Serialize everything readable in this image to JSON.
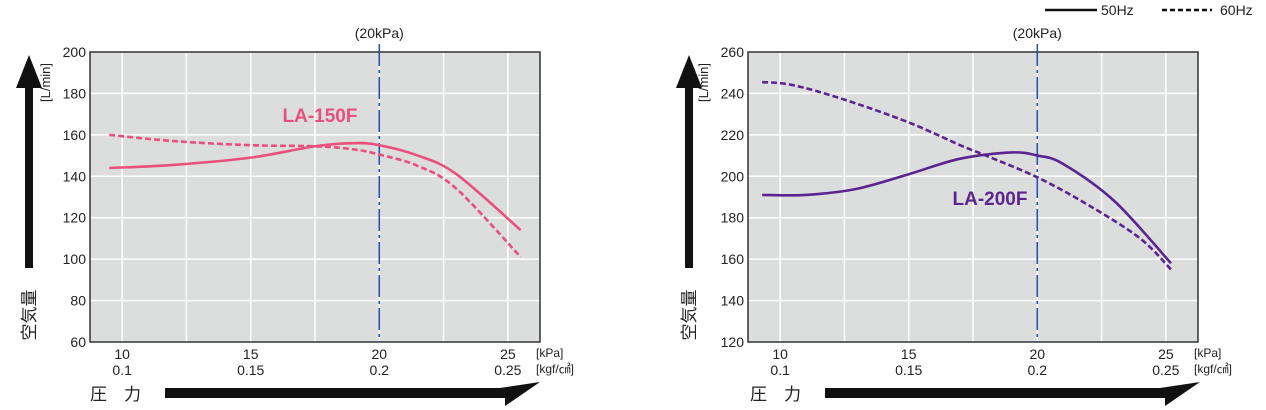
{
  "legend": {
    "solid_label": "50Hz",
    "dashed_label": "60Hz"
  },
  "colors": {
    "plot_bg": "#dcdddd",
    "grid": "#ffffff",
    "marker_line": "#1f4fb0",
    "la150f": "#e8507e",
    "la200f": "#5b2590",
    "arrow": "#111111"
  },
  "axis_labels": {
    "y_title": "空気量",
    "y_unit": "[L/min]",
    "x_title": "圧　力",
    "x_unit_kpa": "[kPa]",
    "x_unit_kgf": "[kgf/㎠]",
    "marker_label": "(20kPa)"
  },
  "chart_data": [
    {
      "type": "line",
      "title": "LA-150F",
      "xlabel": "圧力 [kPa] / [kgf/㎠]",
      "ylabel": "空気量 [L/min]",
      "xlim": [
        8.75,
        26.25
      ],
      "ylim": [
        60,
        200
      ],
      "x_ticks": [
        10,
        15,
        20,
        25
      ],
      "x_tick_labels": [
        "10",
        "15",
        "20",
        "25"
      ],
      "x_tick_labels2": [
        "0.1",
        "0.15",
        "0.2",
        "0.25"
      ],
      "y_ticks": [
        60,
        80,
        100,
        120,
        140,
        160,
        180,
        200
      ],
      "y_tick_labels": [
        "60",
        "80",
        "100",
        "120",
        "140",
        "160",
        "180",
        "200"
      ],
      "grid": true,
      "marker_x": 20,
      "series": [
        {
          "name": "50Hz",
          "style": "solid",
          "x": [
            9.5,
            12,
            15,
            17.5,
            19,
            20,
            21.5,
            23,
            25.5
          ],
          "y": [
            144,
            145.5,
            149,
            154.5,
            156,
            155,
            150,
            141,
            114
          ]
        },
        {
          "name": "60Hz",
          "style": "dashed",
          "x": [
            9.5,
            12,
            15,
            17.5,
            19,
            20,
            21.5,
            23,
            25.5
          ],
          "y": [
            160,
            157,
            155,
            154.5,
            153,
            150.5,
            145,
            134,
            101
          ]
        }
      ]
    },
    {
      "type": "line",
      "title": "LA-200F",
      "xlabel": "圧力 [kPa] / [kgf/㎠]",
      "ylabel": "空気量 [L/min]",
      "xlim": [
        8.75,
        26.25
      ],
      "ylim": [
        120,
        260
      ],
      "x_ticks": [
        10,
        15,
        20,
        25
      ],
      "x_tick_labels": [
        "10",
        "15",
        "20",
        "25"
      ],
      "x_tick_labels2": [
        "0.1",
        "0.15",
        "0.2",
        "0.25"
      ],
      "y_ticks": [
        120,
        140,
        160,
        180,
        200,
        220,
        240,
        260
      ],
      "y_tick_labels": [
        "120",
        "140",
        "160",
        "180",
        "200",
        "220",
        "240",
        "260"
      ],
      "grid": true,
      "marker_x": 20,
      "series": [
        {
          "name": "50Hz",
          "style": "solid",
          "x": [
            9.3,
            11,
            13,
            15,
            17,
            19,
            20,
            21,
            23,
            25.2
          ],
          "y": [
            191,
            191,
            194,
            201,
            208.5,
            211.5,
            210,
            206,
            188,
            158
          ]
        },
        {
          "name": "60Hz",
          "style": "dashed",
          "x": [
            9.3,
            10.5,
            12.5,
            15,
            17,
            18,
            20,
            22,
            24,
            25.2
          ],
          "y": [
            245.5,
            244,
            237,
            226,
            215,
            210,
            199.5,
            186,
            170,
            155
          ]
        }
      ]
    }
  ]
}
